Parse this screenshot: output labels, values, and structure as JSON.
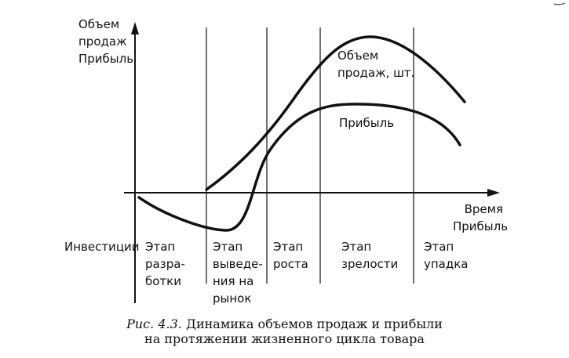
{
  "y_axis": {
    "label_lines": [
      "Объем",
      "продаж",
      "Прибыль"
    ]
  },
  "x_axis": {
    "label_lines": [
      "Время",
      "Прибыль"
    ]
  },
  "curves": {
    "sales_label_lines": [
      "Объем",
      "продаж, шт."
    ],
    "profit_label": "Прибыль"
  },
  "investments_label": "Инвестиции",
  "stages": [
    {
      "lines": [
        "Этап",
        "разра-",
        "ботки"
      ]
    },
    {
      "lines": [
        "Этап",
        "выведе-",
        "ния на",
        "рынок"
      ]
    },
    {
      "lines": [
        "Этап",
        "роста"
      ]
    },
    {
      "lines": [
        "Этап",
        "зрелости"
      ]
    },
    {
      "lines": [
        "Этап",
        "упадка"
      ]
    }
  ],
  "caption": {
    "number": "Рис. 4.3.",
    "line1_text": "Динамика объемов продаж и прибыли",
    "line2": "на протяжении жизненного цикла товара"
  }
}
